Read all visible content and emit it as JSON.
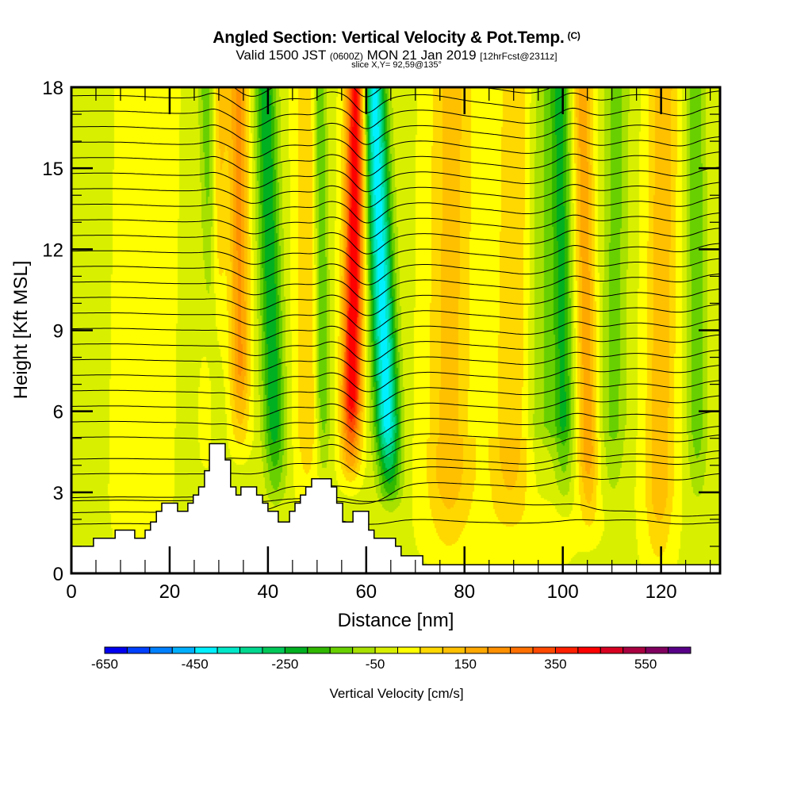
{
  "header": {
    "title": "Angled Section: Vertical Velocity & Pot.Temp.",
    "title_tag": "(C)",
    "valid_prefix": "Valid 1500 JST",
    "valid_utc": "(0600Z)",
    "valid_date": "MON 21 Jan 2019",
    "forecast": "[12hrFcst@2311z]",
    "slice": "slice X,Y= 92,59@135°"
  },
  "chart_data": {
    "type": "heatmap",
    "title": "Angled Section: Vertical Velocity & Pot.Temp.",
    "xlabel": "Distance [nm]",
    "ylabel": "Height [Kft MSL]",
    "xlim": [
      0,
      132
    ],
    "ylim": [
      0,
      18
    ],
    "xticks": [
      0,
      20,
      40,
      60,
      80,
      100,
      120
    ],
    "xtick_labels": [
      "0",
      "20",
      "40",
      "60",
      "80",
      "100",
      "120"
    ],
    "xminor_step": 5,
    "yticks": [
      0,
      3,
      6,
      9,
      12,
      15,
      18
    ],
    "ytick_labels": [
      "0",
      "3",
      "6",
      "9",
      "12",
      "15",
      "18"
    ],
    "yminor_step": 1,
    "colorbar": {
      "title": "Vertical Velocity [cm/s]",
      "min": -650,
      "max": 650,
      "step": 50,
      "tick_values": [
        -650,
        -450,
        -250,
        -50,
        150,
        350,
        550
      ],
      "tick_labels": [
        "-650",
        "-450",
        "-250",
        "-50",
        "150",
        "350",
        "550"
      ],
      "colors": [
        "#0000f0",
        "#0040ff",
        "#0080ff",
        "#00b0ff",
        "#00f0ff",
        "#00e8c8",
        "#00d890",
        "#00c858",
        "#00b020",
        "#30b800",
        "#68d000",
        "#a8e000",
        "#d8f000",
        "#ffff00",
        "#ffd800",
        "#ffc000",
        "#ffa800",
        "#ff9000",
        "#ff7000",
        "#ff4800",
        "#ff2000",
        "#ff0000",
        "#d80020",
        "#a80040",
        "#800060",
        "#580088"
      ]
    },
    "background_velocity_cm_s": -10,
    "velocity_bands": [
      {
        "x_bottom_nm": 14.0,
        "x_top_nm": 15.5,
        "h_min": 0.5,
        "h_max": 18,
        "width_nm": 5.0,
        "amp_cm_s": 60
      },
      {
        "x_bottom_nm": 27.5,
        "x_top_nm": 30.5,
        "h_min": 4.5,
        "h_max": 18,
        "width_nm": 1.8,
        "amp_cm_s": 120
      },
      {
        "x_bottom_nm": 30.0,
        "x_top_nm": 27.5,
        "h_min": 4.5,
        "h_max": 18,
        "width_nm": 1.6,
        "amp_cm_s": -130
      },
      {
        "x_bottom_nm": 34.5,
        "x_top_nm": 34.0,
        "h_min": 5,
        "h_max": 18,
        "width_nm": 2.0,
        "amp_cm_s": 220
      },
      {
        "x_bottom_nm": 42.0,
        "x_top_nm": 39.5,
        "h_min": 3,
        "h_max": 18,
        "width_nm": 2.2,
        "amp_cm_s": -230
      },
      {
        "x_bottom_nm": 48.0,
        "x_top_nm": 48.0,
        "h_min": 3,
        "h_max": 18,
        "width_nm": 2.5,
        "amp_cm_s": 110
      },
      {
        "x_bottom_nm": 51.5,
        "x_top_nm": 50.5,
        "h_min": 4,
        "h_max": 18,
        "width_nm": 1.4,
        "amp_cm_s": -160
      },
      {
        "x_bottom_nm": 56.5,
        "x_top_nm": 58.0,
        "h_min": 4,
        "h_max": 18,
        "width_nm": 2.0,
        "amp_cm_s": 460
      },
      {
        "x_bottom_nm": 65.5,
        "x_top_nm": 61.5,
        "h_min": 3,
        "h_max": 18,
        "width_nm": 2.4,
        "amp_cm_s": -420
      },
      {
        "x_bottom_nm": 76.5,
        "x_top_nm": 77.5,
        "h_min": 1,
        "h_max": 18,
        "width_nm": 4.5,
        "amp_cm_s": 130
      },
      {
        "x_bottom_nm": 89.0,
        "x_top_nm": 90.5,
        "h_min": 2,
        "h_max": 18,
        "width_nm": 3.5,
        "amp_cm_s": 110
      },
      {
        "x_bottom_nm": 96.0,
        "x_top_nm": 96.0,
        "h_min": 3,
        "h_max": 18,
        "width_nm": 3.0,
        "amp_cm_s": -90
      },
      {
        "x_bottom_nm": 100.5,
        "x_top_nm": 99.5,
        "h_min": 3,
        "h_max": 18,
        "width_nm": 2.0,
        "amp_cm_s": -190
      },
      {
        "x_bottom_nm": 105.5,
        "x_top_nm": 104.0,
        "h_min": 2,
        "h_max": 18,
        "width_nm": 2.0,
        "amp_cm_s": 190
      },
      {
        "x_bottom_nm": 110.0,
        "x_top_nm": 111.0,
        "h_min": 3,
        "h_max": 18,
        "width_nm": 2.5,
        "amp_cm_s": -110
      },
      {
        "x_bottom_nm": 119.5,
        "x_top_nm": 120.5,
        "h_min": 0.5,
        "h_max": 18,
        "width_nm": 3.0,
        "amp_cm_s": 150
      },
      {
        "x_bottom_nm": 127.5,
        "x_top_nm": 127.0,
        "h_min": 3,
        "h_max": 18,
        "width_nm": 2.0,
        "amp_cm_s": -130
      },
      {
        "x_bottom_nm": 90.0,
        "x_top_nm": 90.0,
        "h_min": 0,
        "h_max": 5,
        "width_nm": 14.0,
        "amp_cm_s": 40
      }
    ],
    "terrain_kft": [
      [
        0,
        1.0
      ],
      [
        4.5,
        1.0
      ],
      [
        4.5,
        1.3
      ],
      [
        8.9,
        1.3
      ],
      [
        8.9,
        1.6
      ],
      [
        12.9,
        1.6
      ],
      [
        12.9,
        1.3
      ],
      [
        15.0,
        1.3
      ],
      [
        15.0,
        1.6
      ],
      [
        16.1,
        1.6
      ],
      [
        16.1,
        1.9
      ],
      [
        17.3,
        1.9
      ],
      [
        17.3,
        2.3
      ],
      [
        18.4,
        2.3
      ],
      [
        18.4,
        2.6
      ],
      [
        21.6,
        2.6
      ],
      [
        21.6,
        2.3
      ],
      [
        23.7,
        2.3
      ],
      [
        23.7,
        2.6
      ],
      [
        24.8,
        2.6
      ],
      [
        24.8,
        2.9
      ],
      [
        25.9,
        2.9
      ],
      [
        25.9,
        3.2
      ],
      [
        27.1,
        3.2
      ],
      [
        27.1,
        3.8
      ],
      [
        28.1,
        3.8
      ],
      [
        28.1,
        4.8
      ],
      [
        31.3,
        4.8
      ],
      [
        31.3,
        4.2
      ],
      [
        32.4,
        4.2
      ],
      [
        32.4,
        3.2
      ],
      [
        33.5,
        3.2
      ],
      [
        33.5,
        2.9
      ],
      [
        34.5,
        2.9
      ],
      [
        34.5,
        3.2
      ],
      [
        37.7,
        3.2
      ],
      [
        37.7,
        2.9
      ],
      [
        38.9,
        2.9
      ],
      [
        38.9,
        2.6
      ],
      [
        40.0,
        2.6
      ],
      [
        40.0,
        2.3
      ],
      [
        42.1,
        2.3
      ],
      [
        42.1,
        1.9
      ],
      [
        44.4,
        1.9
      ],
      [
        44.4,
        2.3
      ],
      [
        45.5,
        2.3
      ],
      [
        45.5,
        2.6
      ],
      [
        46.6,
        2.6
      ],
      [
        46.6,
        2.9
      ],
      [
        47.7,
        2.9
      ],
      [
        47.7,
        3.2
      ],
      [
        48.9,
        3.2
      ],
      [
        48.9,
        3.5
      ],
      [
        52.9,
        3.5
      ],
      [
        52.9,
        3.2
      ],
      [
        54.0,
        3.2
      ],
      [
        54.0,
        2.6
      ],
      [
        55.2,
        2.6
      ],
      [
        55.2,
        1.9
      ],
      [
        57.3,
        1.9
      ],
      [
        57.3,
        2.3
      ],
      [
        60.5,
        2.3
      ],
      [
        60.5,
        1.6
      ],
      [
        61.6,
        1.6
      ],
      [
        61.6,
        1.3
      ],
      [
        65.97,
        1.3
      ],
      [
        65.97,
        1.0
      ],
      [
        67.1,
        1.0
      ],
      [
        67.1,
        0.65
      ],
      [
        71.5,
        0.65
      ],
      [
        71.5,
        0.32
      ],
      [
        132,
        0.32
      ]
    ],
    "theta_contours": {
      "count": 30,
      "base_height_kft_at_left": 0.9,
      "spacing_kft": 0.57,
      "labels_visible": true
    }
  },
  "axes": {
    "xlabel": "Distance [nm]",
    "ylabel": "Height [Kft MSL]"
  }
}
